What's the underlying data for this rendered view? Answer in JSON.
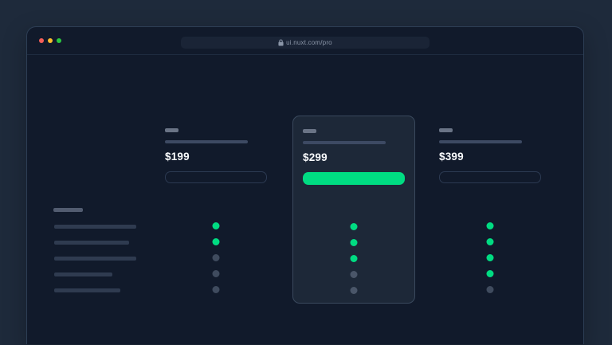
{
  "browser": {
    "url": "ui.nuxt.com/pro",
    "lock_icon": "padlock-icon",
    "traffic_lights": [
      {
        "name": "close",
        "color": "#f65f58"
      },
      {
        "name": "minimize",
        "color": "#fbbd2e"
      },
      {
        "name": "maximize",
        "color": "#2bc840"
      }
    ]
  },
  "pricing_table": {
    "plans": [
      {
        "price": "$199",
        "highlighted": false,
        "cta_style": "outline",
        "features_included": [
          true,
          true,
          false,
          false,
          false
        ]
      },
      {
        "price": "$299",
        "highlighted": true,
        "cta_style": "solid",
        "features_included": [
          true,
          true,
          true,
          false,
          false
        ]
      },
      {
        "price": "$399",
        "highlighted": false,
        "cta_style": "outline",
        "features_included": [
          true,
          true,
          true,
          true,
          false
        ]
      }
    ],
    "feature_list": {
      "rows": 5,
      "note": "skeleton placeholder bars, no text rendered"
    }
  },
  "colors": {
    "accent_green": "#00dc82",
    "dot_off": "#3f4b5e",
    "page_background": "#111a2b",
    "desktop_background": "#1e2a3b",
    "highlight_card_background": "#1d2838"
  }
}
